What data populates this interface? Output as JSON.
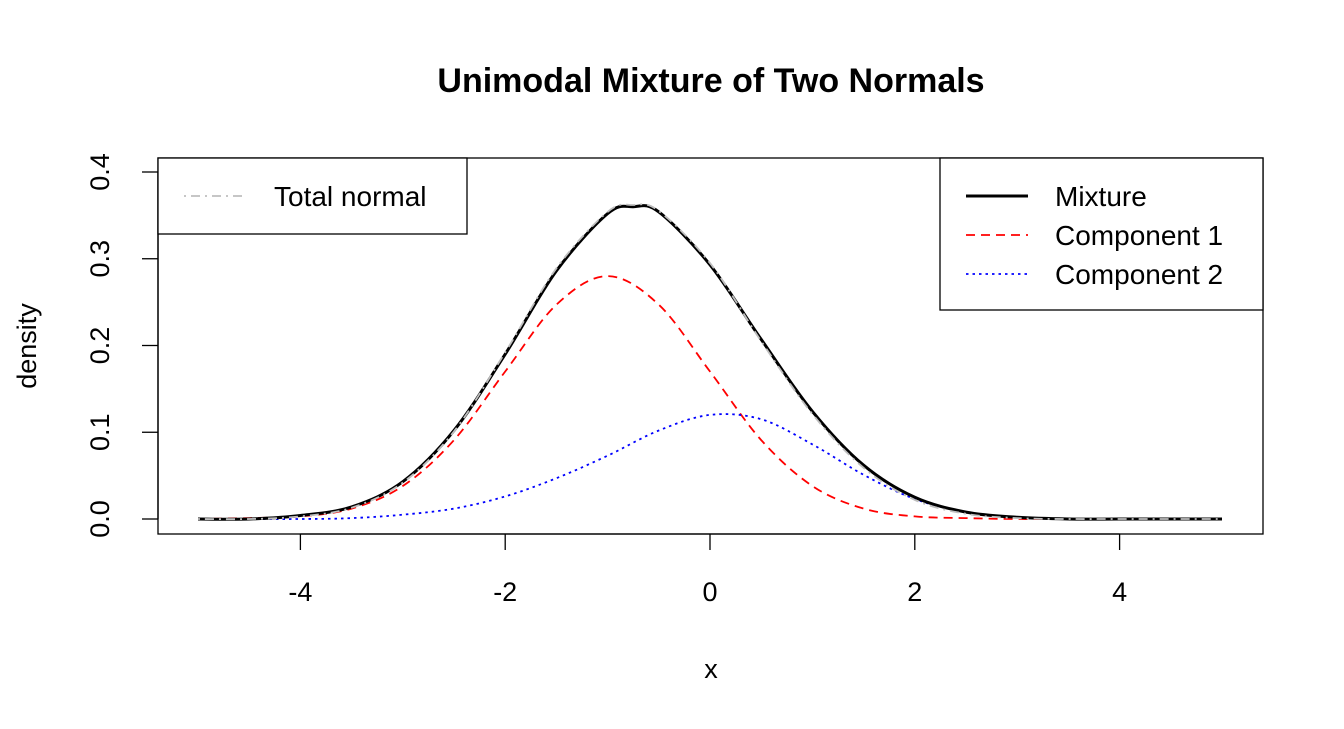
{
  "chart_data": {
    "type": "line",
    "title": "Unimodal Mixture of Two Normals",
    "xlabel": "x",
    "ylabel": "density",
    "xlim": [
      -5,
      5
    ],
    "ylim": [
      0,
      0.4
    ],
    "x_ticks": [
      "-4",
      "-2",
      "0",
      "2",
      "4"
    ],
    "y_ticks": [
      "0.0",
      "0.1",
      "0.2",
      "0.3",
      "0.4"
    ],
    "grid": false,
    "series": [
      {
        "name": "Mixture",
        "color": "#000000",
        "style": "solid",
        "x": [
          -5,
          -4.5,
          -4,
          -3.5,
          -3,
          -2.5,
          -2,
          -1.5,
          -1,
          -0.75,
          -0.5,
          0,
          0.5,
          1,
          1.5,
          2,
          2.5,
          3,
          3.5,
          4,
          4.5,
          5
        ],
        "y": [
          0.0,
          0.0,
          0.004,
          0.014,
          0.043,
          0.102,
          0.19,
          0.286,
          0.352,
          0.36,
          0.354,
          0.293,
          0.207,
          0.124,
          0.062,
          0.025,
          0.008,
          0.002,
          0.0,
          0.0,
          0.0,
          0.0
        ]
      },
      {
        "name": "Component 1",
        "color": "#ff0000",
        "style": "dashed",
        "x": [
          -5,
          -4.5,
          -4,
          -3.5,
          -3,
          -2.5,
          -2,
          -1.5,
          -1,
          -0.5,
          0,
          0.5,
          1,
          1.5,
          2,
          2.5,
          3,
          3.5,
          4,
          4.5,
          5
        ],
        "y": [
          0.0,
          0.001,
          0.003,
          0.012,
          0.038,
          0.091,
          0.17,
          0.247,
          0.28,
          0.247,
          0.17,
          0.091,
          0.038,
          0.012,
          0.003,
          0.001,
          0.0,
          0.0,
          0.0,
          0.0,
          0.0
        ]
      },
      {
        "name": "Component 2",
        "color": "#0000ff",
        "style": "dotted",
        "x": [
          -5,
          -4.5,
          -4,
          -3.5,
          -3,
          -2.5,
          -2,
          -1.5,
          -1,
          -0.5,
          0,
          0.5,
          1,
          1.5,
          2,
          2.5,
          3,
          3.5,
          4,
          4.5,
          5
        ],
        "y": [
          0.0,
          0.0,
          0.0,
          0.001,
          0.005,
          0.012,
          0.026,
          0.047,
          0.073,
          0.102,
          0.12,
          0.115,
          0.086,
          0.051,
          0.023,
          0.008,
          0.002,
          0.0,
          0.0,
          0.0,
          0.0
        ]
      },
      {
        "name": "Total normal",
        "color": "#bebebe",
        "style": "dotdash",
        "x": [
          -5,
          -4.5,
          -4,
          -3.5,
          -3,
          -2.5,
          -2,
          -1.5,
          -1,
          -0.75,
          -0.5,
          0,
          0.5,
          1,
          1.5,
          2,
          2.5,
          3,
          3.5,
          4,
          4.5,
          5
        ],
        "y": [
          0.0,
          0.0,
          0.003,
          0.013,
          0.042,
          0.101,
          0.192,
          0.289,
          0.354,
          0.362,
          0.355,
          0.295,
          0.205,
          0.121,
          0.059,
          0.022,
          0.006,
          0.001,
          0.0,
          0.0,
          0.0,
          0.0
        ]
      }
    ],
    "legends": [
      {
        "position": "top-left",
        "entries": [
          "Total normal"
        ]
      },
      {
        "position": "top-right",
        "entries": [
          "Mixture",
          "Component 1",
          "Component 2"
        ]
      }
    ]
  }
}
